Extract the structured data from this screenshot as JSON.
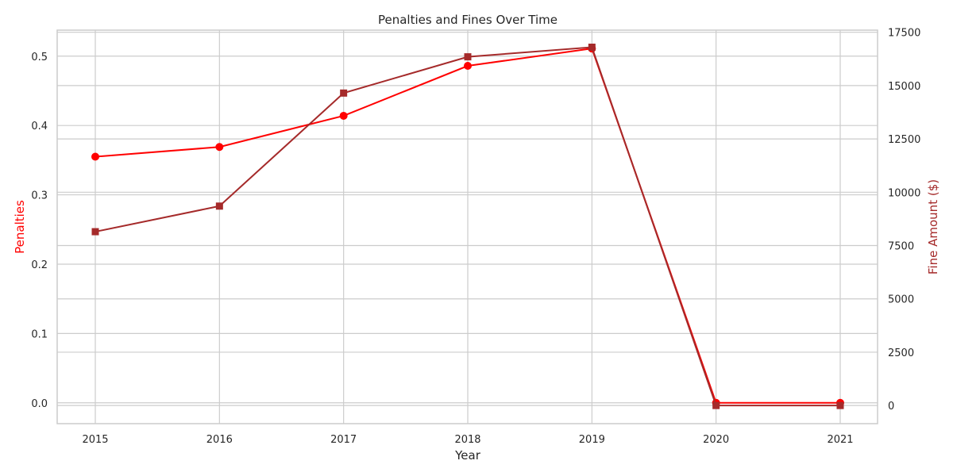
{
  "chart_data": {
    "type": "line",
    "title": "Penalties and Fines Over Time",
    "xlabel": "Year",
    "x": [
      "2015",
      "2016",
      "2017",
      "2018",
      "2019",
      "2020",
      "2021"
    ],
    "y_left": {
      "label": "Penalties",
      "color": "#ff0000",
      "range": [
        -0.03,
        0.5375
      ],
      "ticks": [
        "0.0",
        "0.1",
        "0.2",
        "0.3",
        "0.4",
        "0.5"
      ],
      "tick_values": [
        0.0,
        0.1,
        0.2,
        0.3,
        0.4,
        0.5
      ]
    },
    "y_right": {
      "label": "Fine Amount ($)",
      "color": "#a52a2a",
      "range": [
        -850,
        17600
      ],
      "ticks": [
        "0",
        "2500",
        "5000",
        "7500",
        "10000",
        "12500",
        "15000",
        "17500"
      ],
      "tick_values": [
        0,
        2500,
        5000,
        7500,
        10000,
        12500,
        15000,
        17500
      ]
    },
    "series": [
      {
        "axis": "left",
        "color": "#ff0000",
        "marker": "circle",
        "values": [
          0.355,
          0.369,
          0.414,
          0.486,
          0.511,
          0.0,
          0.0
        ]
      },
      {
        "axis": "right",
        "color": "#a52a2a",
        "marker": "square",
        "values": [
          8150,
          9350,
          14650,
          16350,
          16800,
          0,
          0
        ]
      }
    ],
    "grid": true
  }
}
